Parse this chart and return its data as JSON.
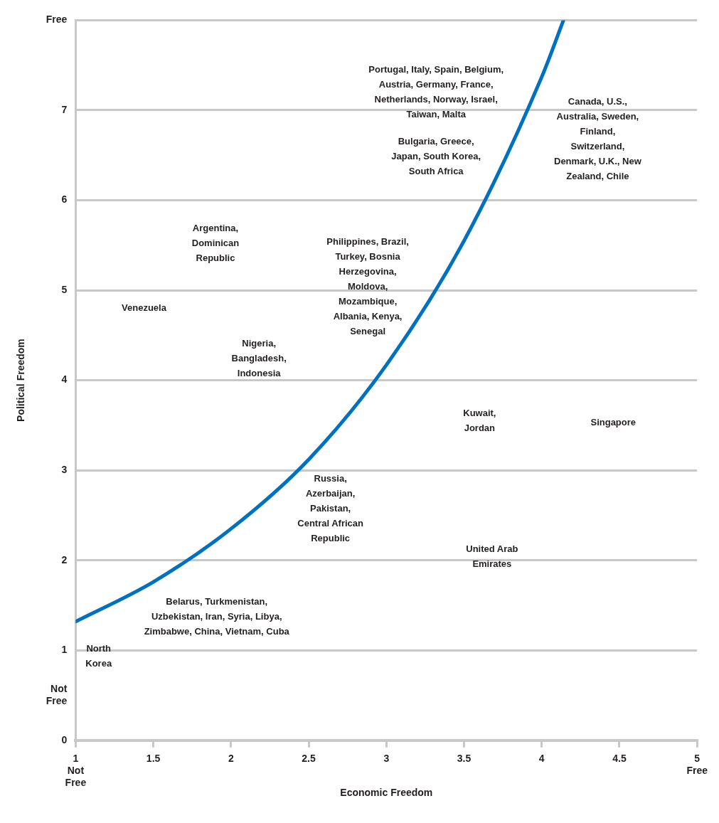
{
  "chart_data": {
    "type": "line",
    "xlabel": "Economic Freedom",
    "ylabel": "Political Freedom",
    "xlim": [
      1,
      5
    ],
    "ylim": [
      0,
      8
    ],
    "xticks": [
      {
        "value": 1,
        "label": "1\nNot\nFree"
      },
      1.5,
      2,
      2.5,
      3,
      3.5,
      4,
      4.5,
      {
        "value": 5,
        "label": "5\nFree"
      }
    ],
    "yticks": [
      0,
      {
        "value": 0.5,
        "label": "Not\nFree"
      },
      1,
      2,
      3,
      4,
      5,
      6,
      7,
      {
        "value": 8,
        "label": "Free"
      }
    ],
    "grid": "y",
    "legend": false,
    "marker": "none",
    "line_style": "solid",
    "series": [
      {
        "color": "#0070c0",
        "x": [
          1,
          1.5,
          2,
          2.5,
          3,
          3.5,
          4,
          4.14
        ],
        "values": [
          1.32,
          1.76,
          2.35,
          3.12,
          4.17,
          5.55,
          7.37,
          8
        ]
      }
    ],
    "annotations": [
      "Portugal, Italy, Spain, Belgium,\nAustria, Germany, France,\nNetherlands, Norway, Israel,\nTaiwan, Malta",
      "Canada, U.S.,\nAustralia, Sweden,\nFinland,\nSwitzerland,\nDenmark, U.K., New\nZealand, Chile",
      "Bulgaria, Greece,\nJapan, South Korea,\nSouth Africa",
      "Argentina,\nDominican\nRepublic",
      "Philippines, Brazil,\nTurkey, Bosnia\nHerzegovina,\nMoldova,\nMozambique,\nAlbania, Kenya,\nSenegal",
      "Venezuela",
      "Nigeria,\nBangladesh,\nIndonesia",
      "Kuwait,\nJordan",
      "Singapore",
      "Russia,\nAzerbaijan,\nPakistan,\nCentral African\nRepublic",
      "United Arab\nEmirates",
      "Belarus, Turkmenistan,\nUzbekistan, Iran, Syria, Libya,\nZimbabwe, China, Vietnam, Cuba",
      "North\nKorea"
    ]
  }
}
